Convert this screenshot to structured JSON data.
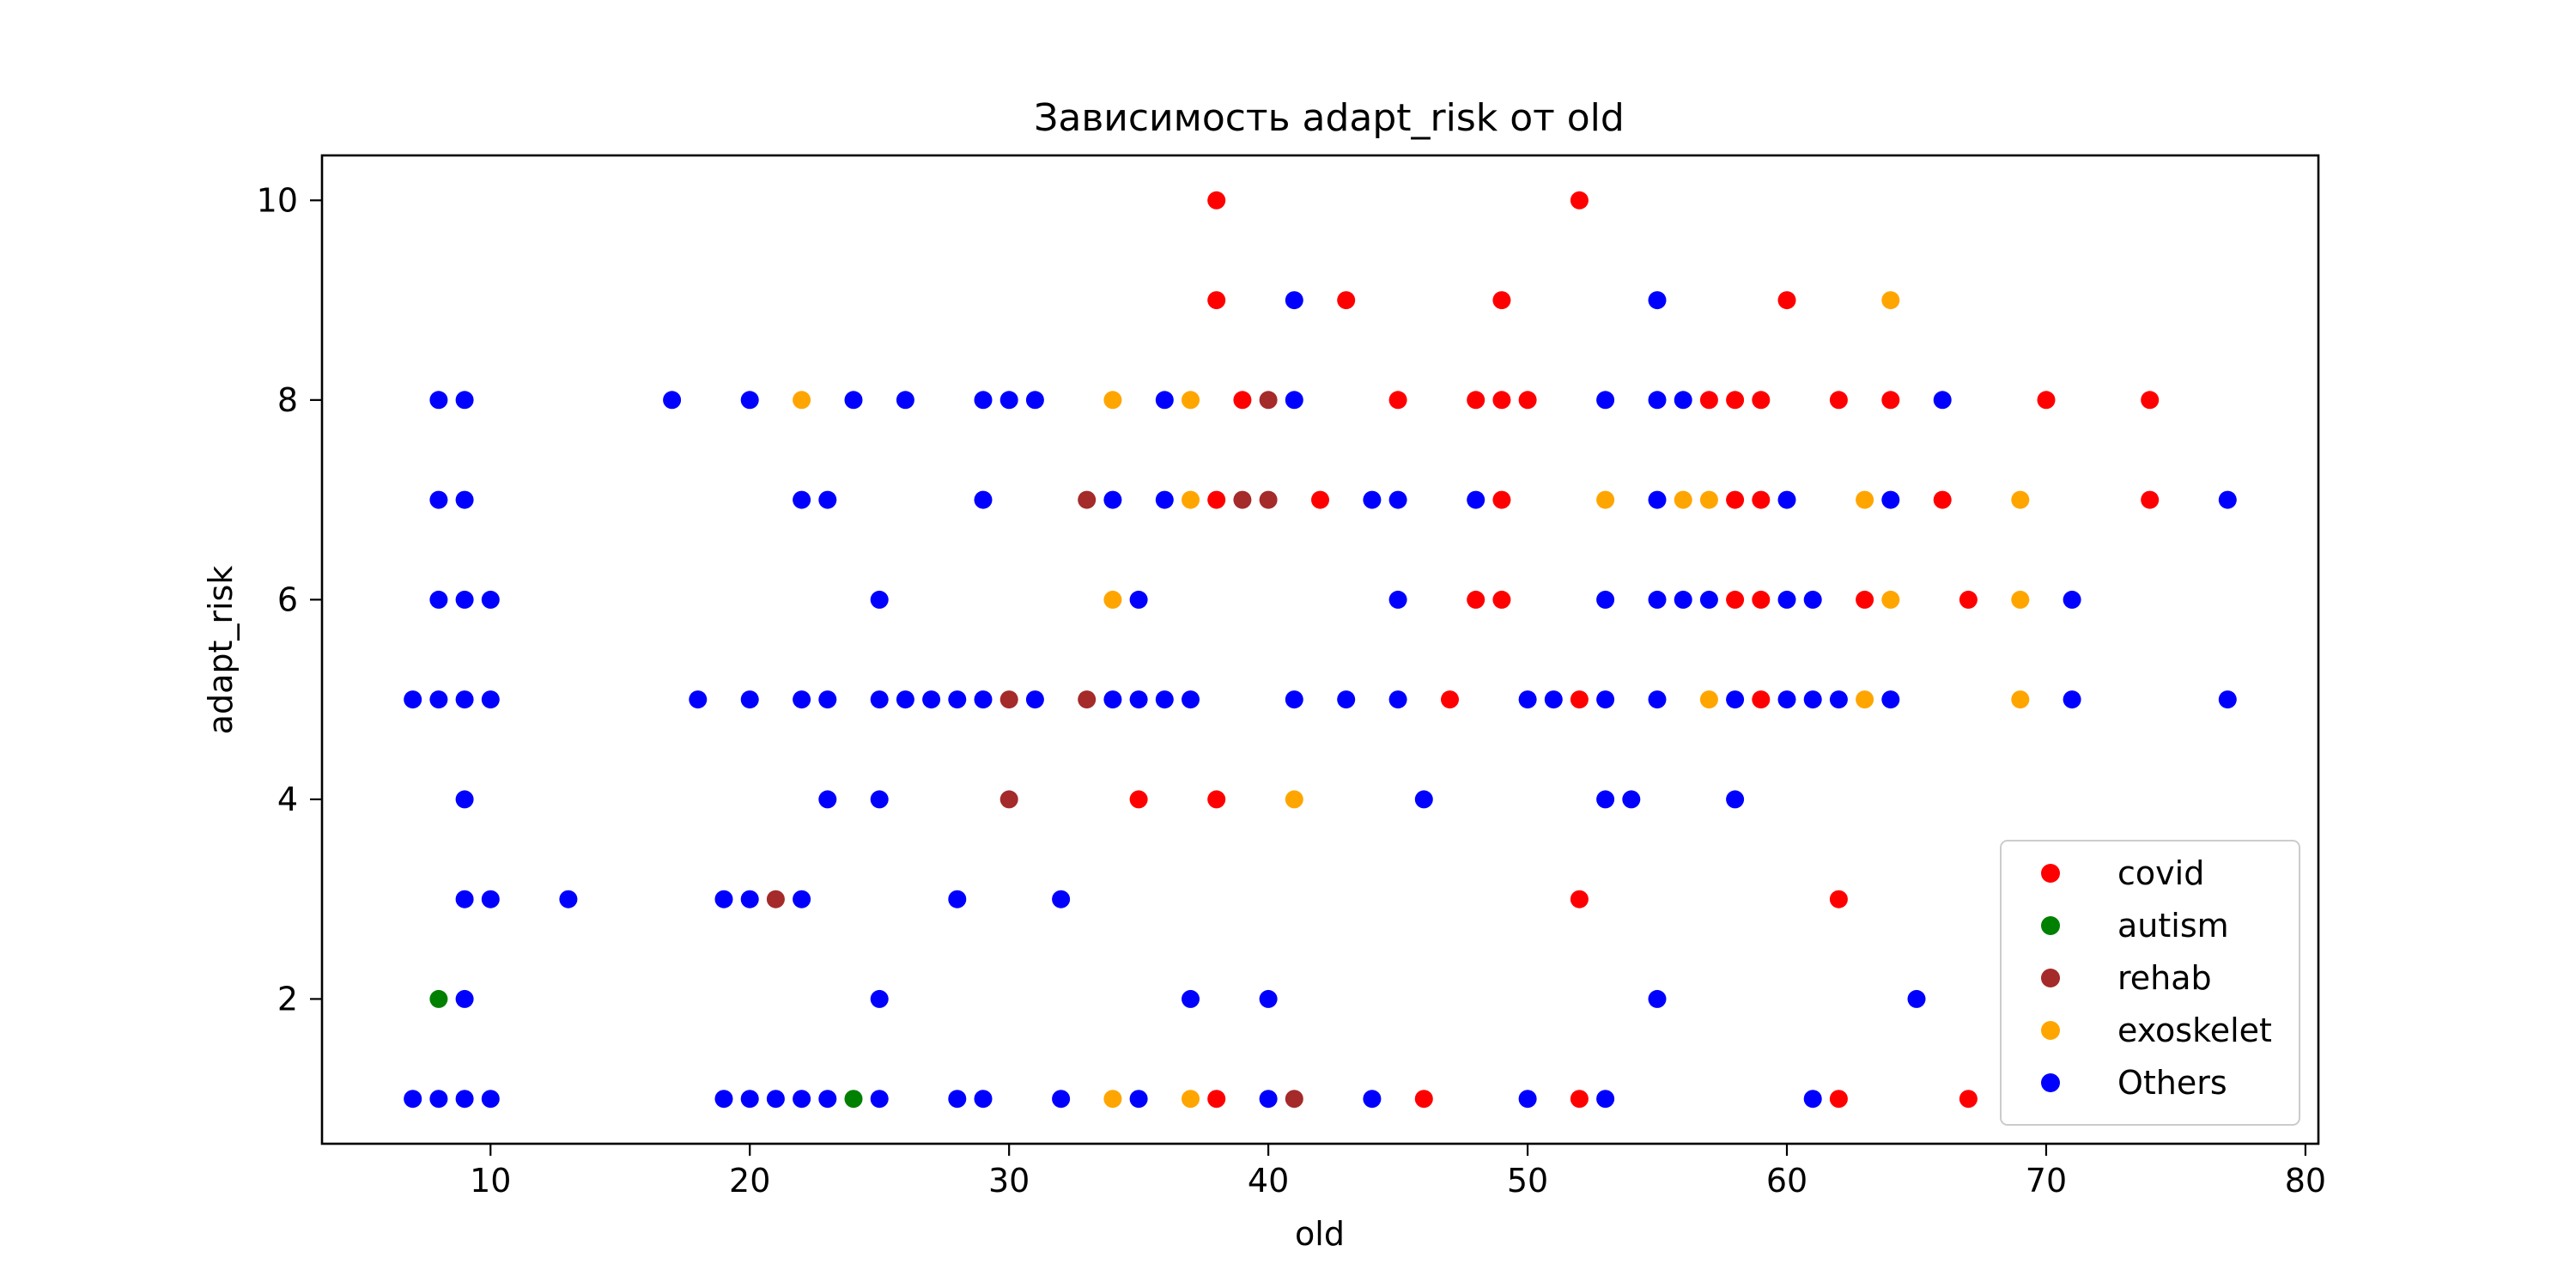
{
  "chart_data": {
    "type": "scatter",
    "title": "Зависимость adapt_risk от old",
    "xlabel": "old",
    "ylabel": "adapt_risk",
    "xlim": [
      3.5,
      80.5
    ],
    "ylim": [
      0.55,
      10.45
    ],
    "xticks": [
      10,
      20,
      30,
      40,
      50,
      60,
      70,
      80
    ],
    "yticks": [
      2,
      4,
      6,
      8,
      10
    ],
    "grid": false,
    "legend_position": "bottom-right",
    "series": [
      {
        "name": "covid",
        "color": "#ff0000",
        "points": [
          [
            38,
            10
          ],
          [
            52,
            10
          ],
          [
            38,
            9
          ],
          [
            43,
            9
          ],
          [
            49,
            9
          ],
          [
            60,
            9
          ],
          [
            39,
            8
          ],
          [
            45,
            8
          ],
          [
            48,
            8
          ],
          [
            49,
            8
          ],
          [
            50,
            8
          ],
          [
            57,
            8
          ],
          [
            58,
            8
          ],
          [
            59,
            8
          ],
          [
            62,
            8
          ],
          [
            64,
            8
          ],
          [
            70,
            8
          ],
          [
            74,
            8
          ],
          [
            38,
            7
          ],
          [
            42,
            7
          ],
          [
            49,
            7
          ],
          [
            58,
            7
          ],
          [
            59,
            7
          ],
          [
            66,
            7
          ],
          [
            74,
            7
          ],
          [
            48,
            6
          ],
          [
            49,
            6
          ],
          [
            58,
            6
          ],
          [
            59,
            6
          ],
          [
            63,
            6
          ],
          [
            67,
            6
          ],
          [
            47,
            5
          ],
          [
            52,
            5
          ],
          [
            59,
            5
          ],
          [
            35,
            4
          ],
          [
            38,
            4
          ],
          [
            52,
            3
          ],
          [
            62,
            3
          ],
          [
            38,
            1
          ],
          [
            46,
            1
          ],
          [
            52,
            1
          ],
          [
            62,
            1
          ],
          [
            67,
            1
          ]
        ]
      },
      {
        "name": "autism",
        "color": "#008000",
        "points": [
          [
            8,
            2
          ],
          [
            24,
            1
          ]
        ]
      },
      {
        "name": "rehab",
        "color": "#a52a2a",
        "points": [
          [
            40,
            8
          ],
          [
            33,
            7
          ],
          [
            39,
            7
          ],
          [
            40,
            7
          ],
          [
            30,
            5
          ],
          [
            33,
            5
          ],
          [
            30,
            4
          ],
          [
            21,
            3
          ],
          [
            41,
            1
          ]
        ]
      },
      {
        "name": "exoskelet",
        "color": "#ffa500",
        "points": [
          [
            64,
            9
          ],
          [
            22,
            8
          ],
          [
            34,
            8
          ],
          [
            37,
            8
          ],
          [
            37,
            7
          ],
          [
            53,
            7
          ],
          [
            56,
            7
          ],
          [
            57,
            7
          ],
          [
            63,
            7
          ],
          [
            69,
            7
          ],
          [
            34,
            6
          ],
          [
            64,
            6
          ],
          [
            69,
            6
          ],
          [
            57,
            5
          ],
          [
            63,
            5
          ],
          [
            69,
            5
          ],
          [
            41,
            4
          ],
          [
            34,
            1
          ],
          [
            37,
            1
          ]
        ]
      },
      {
        "name": "Others",
        "color": "#0000ff",
        "points": [
          [
            41,
            9
          ],
          [
            55,
            9
          ],
          [
            8,
            8
          ],
          [
            9,
            8
          ],
          [
            17,
            8
          ],
          [
            20,
            8
          ],
          [
            24,
            8
          ],
          [
            26,
            8
          ],
          [
            29,
            8
          ],
          [
            30,
            8
          ],
          [
            31,
            8
          ],
          [
            36,
            8
          ],
          [
            41,
            8
          ],
          [
            53,
            8
          ],
          [
            55,
            8
          ],
          [
            56,
            8
          ],
          [
            66,
            8
          ],
          [
            8,
            7
          ],
          [
            9,
            7
          ],
          [
            22,
            7
          ],
          [
            23,
            7
          ],
          [
            29,
            7
          ],
          [
            34,
            7
          ],
          [
            36,
            7
          ],
          [
            44,
            7
          ],
          [
            45,
            7
          ],
          [
            48,
            7
          ],
          [
            55,
            7
          ],
          [
            60,
            7
          ],
          [
            64,
            7
          ],
          [
            77,
            7
          ],
          [
            8,
            6
          ],
          [
            9,
            6
          ],
          [
            10,
            6
          ],
          [
            25,
            6
          ],
          [
            35,
            6
          ],
          [
            45,
            6
          ],
          [
            53,
            6
          ],
          [
            55,
            6
          ],
          [
            56,
            6
          ],
          [
            57,
            6
          ],
          [
            60,
            6
          ],
          [
            61,
            6
          ],
          [
            71,
            6
          ],
          [
            7,
            5
          ],
          [
            8,
            5
          ],
          [
            9,
            5
          ],
          [
            10,
            5
          ],
          [
            18,
            5
          ],
          [
            20,
            5
          ],
          [
            22,
            5
          ],
          [
            23,
            5
          ],
          [
            25,
            5
          ],
          [
            26,
            5
          ],
          [
            27,
            5
          ],
          [
            28,
            5
          ],
          [
            29,
            5
          ],
          [
            31,
            5
          ],
          [
            34,
            5
          ],
          [
            35,
            5
          ],
          [
            36,
            5
          ],
          [
            37,
            5
          ],
          [
            41,
            5
          ],
          [
            43,
            5
          ],
          [
            45,
            5
          ],
          [
            50,
            5
          ],
          [
            51,
            5
          ],
          [
            53,
            5
          ],
          [
            55,
            5
          ],
          [
            58,
            5
          ],
          [
            60,
            5
          ],
          [
            61,
            5
          ],
          [
            62,
            5
          ],
          [
            64,
            5
          ],
          [
            71,
            5
          ],
          [
            77,
            5
          ],
          [
            9,
            4
          ],
          [
            23,
            4
          ],
          [
            25,
            4
          ],
          [
            46,
            4
          ],
          [
            53,
            4
          ],
          [
            54,
            4
          ],
          [
            58,
            4
          ],
          [
            9,
            3
          ],
          [
            10,
            3
          ],
          [
            13,
            3
          ],
          [
            19,
            3
          ],
          [
            20,
            3
          ],
          [
            22,
            3
          ],
          [
            28,
            3
          ],
          [
            32,
            3
          ],
          [
            9,
            2
          ],
          [
            25,
            2
          ],
          [
            37,
            2
          ],
          [
            40,
            2
          ],
          [
            55,
            2
          ],
          [
            65,
            2
          ],
          [
            7,
            1
          ],
          [
            8,
            1
          ],
          [
            9,
            1
          ],
          [
            10,
            1
          ],
          [
            19,
            1
          ],
          [
            20,
            1
          ],
          [
            21,
            1
          ],
          [
            22,
            1
          ],
          [
            23,
            1
          ],
          [
            25,
            1
          ],
          [
            28,
            1
          ],
          [
            29,
            1
          ],
          [
            32,
            1
          ],
          [
            35,
            1
          ],
          [
            40,
            1
          ],
          [
            44,
            1
          ],
          [
            50,
            1
          ],
          [
            53,
            1
          ],
          [
            61,
            1
          ]
        ]
      }
    ]
  }
}
